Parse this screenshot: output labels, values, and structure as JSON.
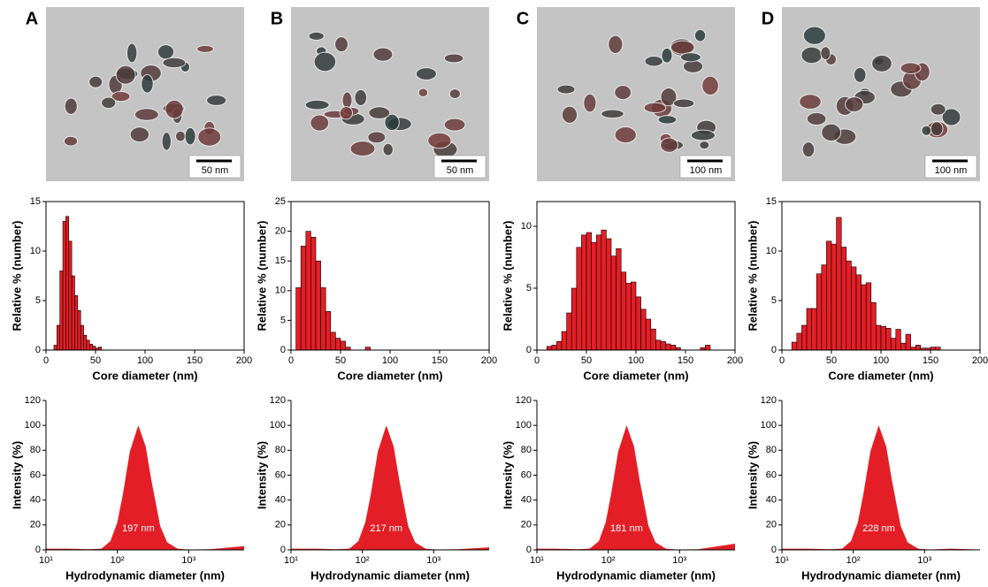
{
  "panels": [
    {
      "label": "A",
      "scale_bar": "50 nm"
    },
    {
      "label": "B",
      "scale_bar": "50 nm"
    },
    {
      "label": "C",
      "scale_bar": "100 nm"
    },
    {
      "label": "D",
      "scale_bar": "100 nm"
    }
  ],
  "chart_data": [
    {
      "type": "histogram",
      "bins": [
        8,
        11,
        14,
        17,
        20,
        23,
        26,
        29,
        32,
        35,
        38,
        41,
        44,
        47,
        50,
        53,
        56
      ],
      "values": [
        0.5,
        2.5,
        8,
        13,
        13.5,
        11,
        7.5,
        5.5,
        4,
        2.5,
        1.5,
        1,
        0.6,
        0.4,
        0.2,
        0.3
      ],
      "color": "#e41e26",
      "xlim": [
        0,
        200
      ],
      "xticks": [
        0,
        50,
        100,
        150,
        200
      ],
      "ylim": [
        0,
        15
      ],
      "yticks": [
        0,
        5,
        10,
        15
      ],
      "xlabel": "Core diameter (nm)",
      "ylabel": "Relative % (number)"
    },
    {
      "type": "area",
      "x": [
        10,
        20,
        40,
        60,
        80,
        100,
        120,
        150,
        197,
        250,
        300,
        400,
        500,
        700,
        1000,
        2000,
        6000
      ],
      "values": [
        1,
        1,
        0.5,
        1,
        7,
        22,
        45,
        79,
        100,
        83,
        56,
        19,
        6,
        1,
        0.3,
        0.5,
        3
      ],
      "color": "#e41e26",
      "xscale": "log",
      "xlim": [
        10,
        6000
      ],
      "xticks": [
        {
          "value": 10,
          "label": "10¹"
        },
        {
          "value": 100,
          "label": "10²"
        },
        {
          "value": 1000,
          "label": "10³"
        }
      ],
      "ylim": [
        0,
        120
      ],
      "yticks": [
        0,
        20,
        40,
        60,
        80,
        100,
        120
      ],
      "annotation": "197 nm",
      "xlabel": "Hydrodynamic diameter (nm)",
      "ylabel": "Intensity (%)"
    },
    {
      "type": "histogram",
      "bins": [
        5,
        10,
        15,
        20,
        25,
        30,
        35,
        40,
        45,
        50,
        55,
        60,
        65,
        70,
        75,
        80
      ],
      "values": [
        10.5,
        17.5,
        20,
        19,
        15,
        10.5,
        6.5,
        3,
        2,
        1.5,
        0.5,
        0,
        0,
        0,
        0.5
      ],
      "color": "#e41e26",
      "xlim": [
        0,
        200
      ],
      "xticks": [
        0,
        50,
        100,
        150,
        200
      ],
      "ylim": [
        0,
        25
      ],
      "yticks": [
        0,
        5,
        10,
        15,
        20,
        25
      ],
      "xlabel": "Core diameter (nm)",
      "ylabel": "Relative % (number)"
    },
    {
      "type": "area",
      "x": [
        10,
        22,
        44,
        66,
        88,
        110,
        132,
        165,
        217,
        275,
        330,
        440,
        550,
        770,
        1100,
        2200,
        6000
      ],
      "values": [
        1,
        1,
        0.5,
        1,
        7,
        22,
        45,
        79,
        100,
        83,
        56,
        19,
        6,
        1,
        0.3,
        0.5,
        2
      ],
      "color": "#e41e26",
      "xscale": "log",
      "xlim": [
        10,
        6000
      ],
      "xticks": [
        {
          "value": 10,
          "label": "10¹"
        },
        {
          "value": 100,
          "label": "10²"
        },
        {
          "value": 1000,
          "label": "10³"
        }
      ],
      "ylim": [
        0,
        120
      ],
      "yticks": [
        0,
        20,
        40,
        60,
        80,
        100,
        120
      ],
      "annotation": "217 nm",
      "xlabel": "Hydrodynamic diameter (nm)",
      "ylabel": "Intensity (%)"
    },
    {
      "type": "histogram",
      "bins": [
        10,
        15,
        20,
        25,
        30,
        35,
        40,
        45,
        50,
        55,
        60,
        65,
        70,
        75,
        80,
        85,
        90,
        95,
        100,
        105,
        110,
        115,
        120,
        125,
        130,
        135,
        140,
        145,
        150,
        155,
        160,
        165,
        170,
        175
      ],
      "values": [
        0.3,
        0.4,
        0.7,
        1.5,
        3,
        5,
        8.3,
        9.3,
        9.5,
        8.7,
        9.3,
        9.7,
        9,
        7.6,
        8.2,
        6.3,
        5.4,
        5.5,
        4.3,
        3.3,
        2.5,
        1.7,
        0.8,
        0.7,
        0.5,
        0.4,
        0.2,
        0,
        0,
        0,
        0,
        0.2,
        0.4
      ],
      "color": "#e41e26",
      "xlim": [
        0,
        200
      ],
      "xticks": [
        0,
        50,
        100,
        150,
        200
      ],
      "ylim": [
        0,
        12
      ],
      "yticks": [
        0,
        5,
        10
      ],
      "xlabel": "Core diameter (nm)",
      "ylabel": "Relative % (number)"
    },
    {
      "type": "area",
      "x": [
        10,
        18,
        37,
        55,
        74,
        92,
        110,
        138,
        181,
        230,
        276,
        368,
        460,
        644,
        920,
        1840,
        6000
      ],
      "values": [
        1,
        1,
        0.5,
        1,
        7,
        22,
        45,
        79,
        100,
        83,
        56,
        19,
        6,
        1,
        0.3,
        0.5,
        5
      ],
      "color": "#e41e26",
      "xscale": "log",
      "xlim": [
        10,
        6000
      ],
      "xticks": [
        {
          "value": 10,
          "label": "10¹"
        },
        {
          "value": 100,
          "label": "10²"
        },
        {
          "value": 1000,
          "label": "10³"
        }
      ],
      "ylim": [
        0,
        120
      ],
      "yticks": [
        0,
        20,
        40,
        60,
        80,
        100,
        120
      ],
      "annotation": "181 nm",
      "xlabel": "Hydrodynamic diameter (nm)",
      "ylabel": "Intensity (%)"
    },
    {
      "type": "histogram",
      "bins": [
        10,
        15,
        20,
        25,
        30,
        35,
        40,
        45,
        50,
        55,
        60,
        65,
        70,
        75,
        80,
        85,
        90,
        95,
        100,
        105,
        110,
        115,
        120,
        125,
        130,
        135,
        140,
        145,
        150,
        155,
        160
      ],
      "values": [
        0.8,
        1.7,
        2.5,
        4.2,
        4.2,
        7.7,
        8.6,
        11,
        10.7,
        13.4,
        10.4,
        9,
        8.4,
        7.6,
        6.6,
        6.8,
        4.8,
        2.5,
        2.4,
        2.2,
        1.2,
        2.1,
        0.7,
        1.6,
        0.3,
        0.5,
        0.2,
        0.2,
        0.3,
        0.3
      ],
      "color": "#e41e26",
      "xlim": [
        0,
        200
      ],
      "xticks": [
        0,
        50,
        100,
        150,
        200
      ],
      "ylim": [
        0,
        15
      ],
      "yticks": [
        0,
        5,
        10,
        15
      ],
      "xlabel": "Core diameter (nm)",
      "ylabel": "Relative % (number)"
    },
    {
      "type": "area",
      "x": [
        10,
        23,
        46,
        70,
        93,
        116,
        139,
        174,
        228,
        290,
        348,
        464,
        580,
        812,
        1160,
        2320,
        6000
      ],
      "values": [
        1,
        1,
        0.5,
        1,
        7,
        22,
        45,
        79,
        100,
        83,
        56,
        19,
        6,
        1,
        0.3,
        1,
        0.3
      ],
      "color": "#e41e26",
      "xscale": "log",
      "xlim": [
        10,
        6000
      ],
      "xticks": [
        {
          "value": 10,
          "label": "10¹"
        },
        {
          "value": 100,
          "label": "10²"
        },
        {
          "value": 1000,
          "label": "10³"
        }
      ],
      "ylim": [
        0,
        120
      ],
      "yticks": [
        0,
        20,
        40,
        60,
        80,
        100,
        120
      ],
      "annotation": "228 nm",
      "xlabel": "Hydrodynamic diameter (nm)",
      "ylabel": "Intensity (%)"
    }
  ]
}
